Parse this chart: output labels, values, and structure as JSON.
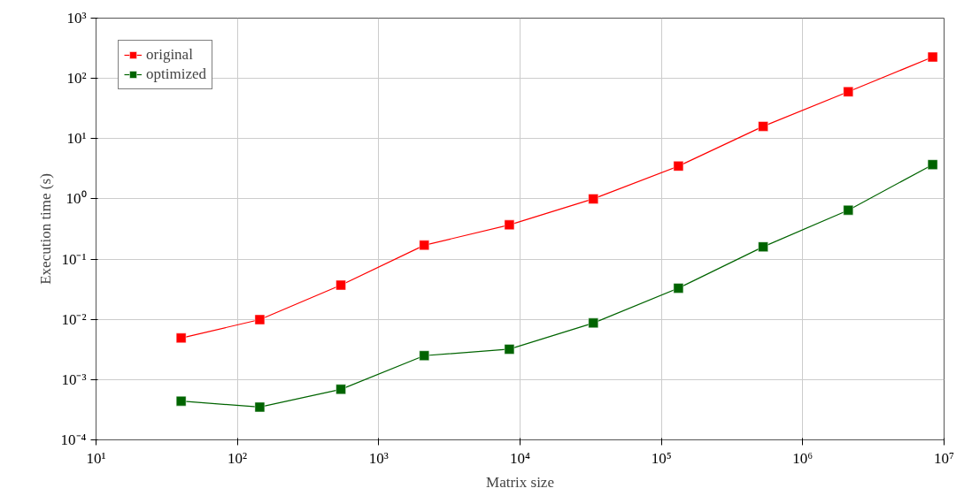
{
  "chart_data": {
    "type": "line",
    "xlabel": "Matrix size",
    "ylabel": "Execution time (s)",
    "log": "xy",
    "grid": true,
    "legend": "top left",
    "marker": "square",
    "line_style": "solid",
    "x": [
      40,
      144,
      540,
      2100,
      8400,
      33000,
      132000,
      525000,
      2100000,
      8300000
    ],
    "series": [
      {
        "name": "original",
        "color": "#ff0000",
        "values": [
          0.0049,
          0.0099,
          0.037,
          0.17,
          0.37,
          1.0,
          3.5,
          16,
          60,
          226
        ]
      },
      {
        "name": "optimized",
        "color": "#006400",
        "values": [
          0.00044,
          0.00035,
          0.00069,
          0.0025,
          0.0032,
          0.0087,
          0.033,
          0.16,
          0.65,
          3.7
        ]
      }
    ],
    "xlim": [
      10,
      10000000
    ],
    "ylim": [
      0.0001,
      1000
    ],
    "xticks": [
      {
        "value": 10,
        "label": "10¹"
      },
      {
        "value": 100,
        "label": "10²"
      },
      {
        "value": 1000,
        "label": "10³"
      },
      {
        "value": 10000,
        "label": "10⁴"
      },
      {
        "value": 100000,
        "label": "10⁵"
      },
      {
        "value": 1000000,
        "label": "10⁶"
      },
      {
        "value": 10000000,
        "label": "10⁷"
      }
    ],
    "yticks": [
      {
        "value": 0.0001,
        "label": "10⁻⁴"
      },
      {
        "value": 0.001,
        "label": "10⁻³"
      },
      {
        "value": 0.01,
        "label": "10⁻²"
      },
      {
        "value": 0.1,
        "label": "10⁻¹"
      },
      {
        "value": 1,
        "label": "10⁰"
      },
      {
        "value": 10,
        "label": "10¹"
      },
      {
        "value": 100,
        "label": "10²"
      },
      {
        "value": 1000,
        "label": "10³"
      }
    ]
  }
}
